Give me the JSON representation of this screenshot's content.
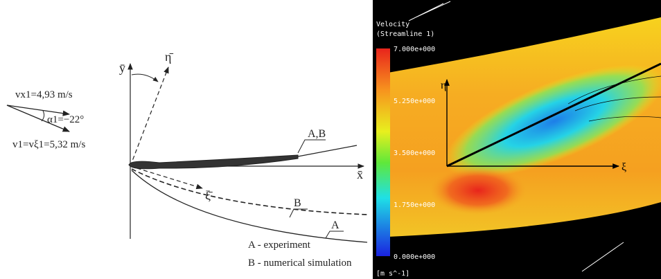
{
  "left_panel": {
    "inlet": {
      "vx": "vx1=4,93 m/s",
      "alpha": "α1=−22°",
      "v": "v1=vξ1=5,32 m/s"
    },
    "axes": {
      "y": "ȳ",
      "eta": "η̄",
      "x": "x̄",
      "xi": "ξ̄"
    },
    "curve_labels": [
      "A,B",
      "B",
      "A"
    ],
    "legend": [
      "A - experiment",
      "B - numerical simulation"
    ]
  },
  "right_panel": {
    "title": "Velocity",
    "subtitle": "(Streamline 1)",
    "colorbar_labels": [
      "7.000e+000",
      "5.250e+000",
      "3.500e+000",
      "1.750e+000",
      "0.000e+000"
    ],
    "unit": "[m s^-1]",
    "axes": {
      "eta": "η",
      "xi": "ξ"
    }
  }
}
